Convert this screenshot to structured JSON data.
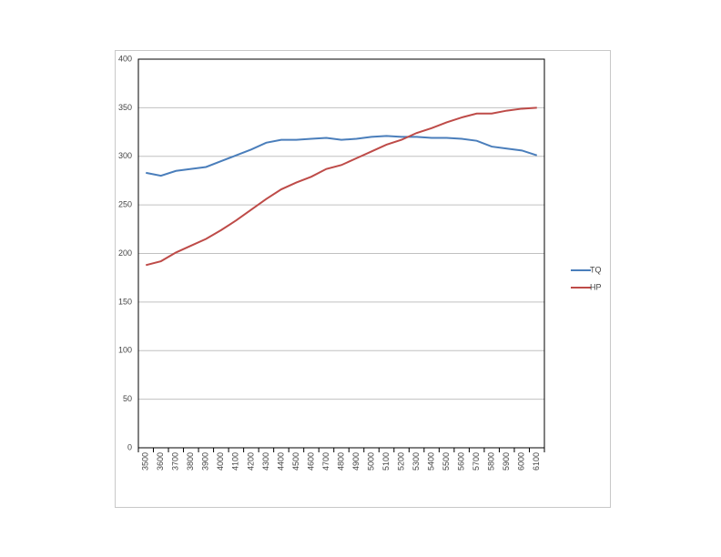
{
  "chart_data": {
    "type": "line",
    "categories": [
      "3500",
      "3600",
      "3700",
      "3800",
      "3900",
      "4000",
      "4100",
      "4200",
      "4300",
      "4400",
      "4500",
      "4600",
      "4700",
      "4800",
      "4900",
      "5000",
      "5100",
      "5200",
      "5300",
      "5400",
      "5500",
      "5600",
      "5700",
      "5800",
      "5900",
      "6000",
      "6100"
    ],
    "series": [
      {
        "name": "TQ",
        "color": "#4a7ebb",
        "values": [
          283,
          280,
          285,
          287,
          289,
          295,
          301,
          307,
          314,
          317,
          317,
          318,
          319,
          317,
          318,
          320,
          321,
          320,
          320,
          319,
          319,
          318,
          316,
          310,
          308,
          306,
          301
        ]
      },
      {
        "name": "HP",
        "color": "#be4b48",
        "values": [
          188,
          192,
          201,
          208,
          215,
          224,
          234,
          245,
          256,
          266,
          273,
          279,
          287,
          291,
          298,
          305,
          312,
          317,
          324,
          329,
          335,
          340,
          344,
          344,
          347,
          349,
          350
        ]
      }
    ],
    "ylim": [
      0,
      400
    ],
    "yticks": [
      0,
      50,
      100,
      150,
      200,
      250,
      300,
      350,
      400
    ],
    "grid": true,
    "legend": "right"
  }
}
